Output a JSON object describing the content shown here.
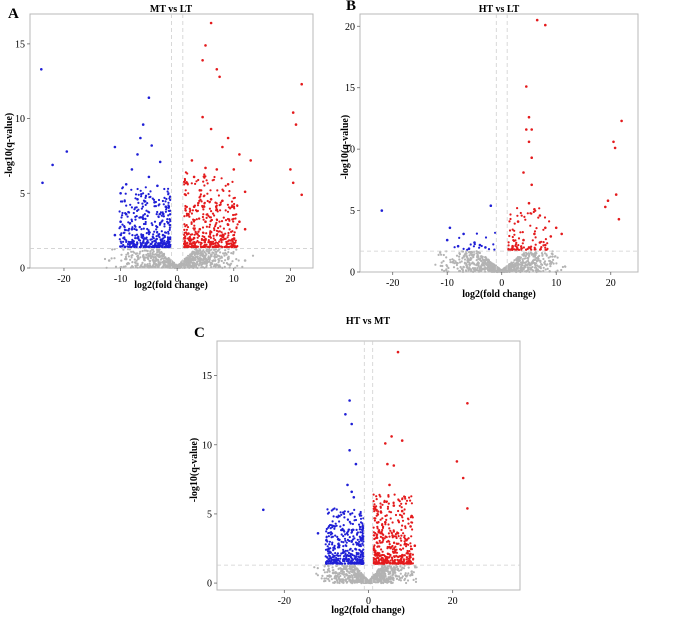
{
  "chart_data": [
    {
      "type": "scatter",
      "panel_label": "A",
      "title": "MT vs LT",
      "xlabel": "log2(fold change)",
      "ylabel": "-log10(q-value)",
      "xlim": [
        -26,
        24
      ],
      "ylim": [
        0,
        17
      ],
      "xticks": [
        -20,
        -10,
        0,
        10,
        20
      ],
      "yticks": [
        0,
        5,
        10,
        15
      ],
      "grid": false,
      "thresholds": {
        "log2fc": [
          -1,
          1
        ],
        "neg_log10_q": 1.3
      },
      "colors": {
        "up": "#e41a1c",
        "down": "#1f1fd6",
        "ns": "#b3b3b3"
      },
      "series": [
        {
          "color": "#e41a1c",
          "points": [
            [
              6,
              16.4
            ],
            [
              5,
              14.9
            ],
            [
              4.5,
              13.9
            ],
            [
              7,
              13.3
            ],
            [
              7.5,
              12.8
            ],
            [
              9,
              8.7
            ],
            [
              4.5,
              10.1
            ],
            [
              6,
              9.3
            ],
            [
              13,
              7.2
            ],
            [
              11,
              7.6
            ],
            [
              8,
              8.1
            ],
            [
              10,
              6.6
            ],
            [
              2.6,
              7.2
            ],
            [
              3,
              6.1
            ],
            [
              5,
              6.7
            ],
            [
              7,
              6.6
            ],
            [
              12,
              5.1
            ],
            [
              9,
              5.6
            ],
            [
              6,
              4.6
            ],
            [
              4,
              5.2
            ],
            [
              3,
              4.1
            ],
            [
              8,
              4.5
            ],
            [
              10,
              4.1
            ],
            [
              11,
              3.1
            ],
            [
              2,
              3.6
            ],
            [
              5,
              3.1
            ],
            [
              7,
              3.9
            ],
            [
              9,
              2.9
            ],
            [
              4,
              2.6
            ],
            [
              6,
              2.4
            ],
            [
              8,
              2.1
            ],
            [
              3,
              2.0
            ],
            [
              12,
              2.6
            ],
            [
              2,
              2.3
            ],
            [
              5,
              1.9
            ],
            [
              20.5,
              10.4
            ],
            [
              21,
              9.6
            ],
            [
              22,
              12.3
            ],
            [
              20,
              6.6
            ],
            [
              20.5,
              5.7
            ],
            [
              22,
              4.9
            ]
          ]
        },
        {
          "color": "#1f1fd6",
          "points": [
            [
              -24,
              13.3
            ],
            [
              -23.8,
              5.7
            ],
            [
              -22,
              6.9
            ],
            [
              -19.5,
              7.8
            ],
            [
              -5,
              11.4
            ],
            [
              -6,
              9.6
            ],
            [
              -6.5,
              8.7
            ],
            [
              -4.5,
              8.2
            ],
            [
              -7,
              7.6
            ],
            [
              -11,
              8.1
            ],
            [
              -3,
              7.1
            ],
            [
              -8,
              6.6
            ],
            [
              -5,
              6.1
            ],
            [
              -3.5,
              5.5
            ],
            [
              -9,
              5.6
            ],
            [
              -10,
              5.0
            ],
            [
              -7,
              4.6
            ],
            [
              -4,
              4.4
            ],
            [
              -2,
              4.1
            ],
            [
              -9,
              3.6
            ],
            [
              -6,
              3.3
            ],
            [
              -3,
              3.0
            ],
            [
              -10,
              3.1
            ],
            [
              -8,
              2.6
            ],
            [
              -5,
              2.4
            ],
            [
              -2.5,
              2.2
            ],
            [
              -7,
              2.0
            ],
            [
              -4,
              1.8
            ],
            [
              -11,
              2.2
            ],
            [
              -6,
              1.7
            ]
          ]
        },
        {
          "color": "#b3b3b3",
          "points": [
            [
              -3,
              1.0
            ],
            [
              3,
              1.0
            ],
            [
              -6,
              0.8
            ],
            [
              6,
              0.8
            ],
            [
              -9,
              0.6
            ],
            [
              9,
              0.6
            ],
            [
              -1.5,
              0.5
            ],
            [
              1.5,
              0.5
            ],
            [
              -0.5,
              0.2
            ],
            [
              0.5,
              0.2
            ],
            [
              -4,
              0.3
            ],
            [
              4,
              0.3
            ],
            [
              -12,
              0.5
            ],
            [
              12,
              0.5
            ],
            [
              -7,
              0.2
            ],
            [
              7,
              0.2
            ]
          ]
        }
      ]
    },
    {
      "type": "scatter",
      "panel_label": "B",
      "title": "HT vs LT",
      "xlabel": "log2(fold change)",
      "ylabel": "-log10(q-value)",
      "xlim": [
        -26,
        25
      ],
      "ylim": [
        0,
        21
      ],
      "xticks": [
        -20,
        -10,
        0,
        10,
        20
      ],
      "yticks": [
        0,
        5,
        10,
        15,
        20
      ],
      "grid": false,
      "thresholds": {
        "log2fc": [
          -1,
          1
        ],
        "neg_log10_q": 1.7
      },
      "colors": {
        "up": "#e41a1c",
        "down": "#1f1fd6",
        "ns": "#b3b3b3"
      },
      "series": [
        {
          "color": "#e41a1c",
          "points": [
            [
              6.5,
              20.5
            ],
            [
              8,
              20.1
            ],
            [
              4.5,
              15.1
            ],
            [
              5,
              12.6
            ],
            [
              5.5,
              11.6
            ],
            [
              4.5,
              11.6
            ],
            [
              5,
              10.6
            ],
            [
              5.5,
              9.3
            ],
            [
              4,
              8.1
            ],
            [
              5.5,
              7.1
            ],
            [
              5,
              5.6
            ],
            [
              6,
              5.1
            ],
            [
              7,
              4.6
            ],
            [
              3,
              4.1
            ],
            [
              8,
              3.6
            ],
            [
              6,
              3.1
            ],
            [
              9,
              2.9
            ],
            [
              4,
              2.6
            ],
            [
              10,
              3.6
            ],
            [
              11,
              3.1
            ],
            [
              7,
              2.4
            ],
            [
              2,
              2.1
            ],
            [
              5,
              2.0
            ],
            [
              8,
              2.2
            ],
            [
              22,
              12.3
            ],
            [
              20.5,
              10.6
            ],
            [
              20.8,
              10.1
            ],
            [
              21,
              6.3
            ],
            [
              19.5,
              5.8
            ],
            [
              19,
              5.3
            ],
            [
              21.5,
              4.3
            ]
          ]
        },
        {
          "color": "#1f1fd6",
          "points": [
            [
              -22,
              5.0
            ],
            [
              -2,
              5.4
            ],
            [
              -9.5,
              3.6
            ],
            [
              -7,
              3.1
            ],
            [
              -10,
              2.6
            ],
            [
              -5,
              2.4
            ],
            [
              -8,
              2.1
            ],
            [
              -4,
              2.2
            ],
            [
              -3,
              2.0
            ],
            [
              -6,
              1.9
            ]
          ]
        },
        {
          "color": "#b3b3b3",
          "points": [
            [
              -3,
              1.2
            ],
            [
              3,
              1.2
            ],
            [
              -6,
              1.0
            ],
            [
              6,
              1.0
            ],
            [
              -9,
              0.8
            ],
            [
              9,
              0.8
            ],
            [
              -1.5,
              0.5
            ],
            [
              1.5,
              0.5
            ],
            [
              -0.5,
              0.2
            ],
            [
              0.5,
              0.2
            ],
            [
              -4,
              0.3
            ],
            [
              4,
              0.3
            ],
            [
              -7,
              0.4
            ],
            [
              7,
              0.4
            ]
          ]
        }
      ]
    },
    {
      "type": "scatter",
      "panel_label": "C",
      "title": "HT vs MT",
      "xlabel": "log2(fold change)",
      "ylabel": "-log10(q-value)",
      "xlim": [
        -36,
        36
      ],
      "ylim": [
        -0.5,
        17.5
      ],
      "xticks": [
        -20,
        0,
        20
      ],
      "yticks": [
        0,
        5,
        10,
        15
      ],
      "grid": false,
      "thresholds": {
        "log2fc": [
          -1,
          1
        ],
        "neg_log10_q": 1.3
      },
      "colors": {
        "up": "#e41a1c",
        "down": "#1f1fd6",
        "ns": "#b3b3b3"
      },
      "series": [
        {
          "color": "#e41a1c",
          "points": [
            [
              7,
              16.7
            ],
            [
              5.5,
              10.6
            ],
            [
              8,
              10.3
            ],
            [
              4,
              10.1
            ],
            [
              4.5,
              8.6
            ],
            [
              6,
              8.5
            ],
            [
              5,
              7.1
            ],
            [
              6,
              5.6
            ],
            [
              3,
              5.1
            ],
            [
              8,
              5.2
            ],
            [
              10,
              4.1
            ],
            [
              4,
              4.4
            ],
            [
              7,
              3.6
            ],
            [
              9,
              3.1
            ],
            [
              2,
              3.5
            ],
            [
              11,
              2.7
            ],
            [
              5,
              2.6
            ],
            [
              6,
              2.2
            ],
            [
              3,
              2.0
            ],
            [
              8,
              1.9
            ],
            [
              23.5,
              13.0
            ],
            [
              21,
              8.8
            ],
            [
              22.5,
              7.6
            ],
            [
              23.5,
              5.4
            ]
          ]
        },
        {
          "color": "#1f1fd6",
          "points": [
            [
              -25,
              5.3
            ],
            [
              -4.5,
              13.2
            ],
            [
              -5.5,
              12.2
            ],
            [
              -4,
              11.5
            ],
            [
              -4.5,
              9.6
            ],
            [
              -3,
              8.6
            ],
            [
              -5,
              7.1
            ],
            [
              -4,
              6.6
            ],
            [
              -3.5,
              6.2
            ],
            [
              -6,
              5.1
            ],
            [
              -12,
              3.6
            ],
            [
              -10,
              3.1
            ],
            [
              -8,
              4.1
            ],
            [
              -7,
              2.6
            ],
            [
              -4,
              3.0
            ],
            [
              -2,
              2.7
            ],
            [
              -9,
              2.2
            ],
            [
              -5,
              2.0
            ],
            [
              -3,
              1.9
            ],
            [
              -6,
              1.7
            ]
          ]
        },
        {
          "color": "#b3b3b3",
          "points": [
            [
              -3,
              1.0
            ],
            [
              3,
              1.0
            ],
            [
              -6,
              0.8
            ],
            [
              6,
              0.8
            ],
            [
              -9,
              0.5
            ],
            [
              9,
              0.5
            ],
            [
              -1.5,
              0.4
            ],
            [
              1.5,
              0.4
            ],
            [
              -0.5,
              0.2
            ],
            [
              0.5,
              0.2
            ],
            [
              -4,
              0.1
            ],
            [
              4,
              0.1
            ]
          ]
        }
      ]
    }
  ]
}
